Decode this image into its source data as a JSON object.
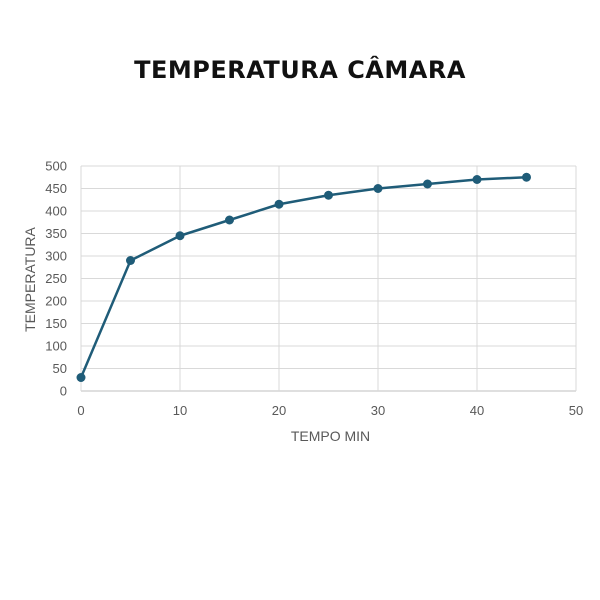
{
  "chart_data": {
    "type": "line",
    "title": "TEMPERATURA CÂMARA",
    "xlabel": "TEMPO MIN",
    "ylabel": "TEMPERATURA",
    "xlim": [
      0,
      50
    ],
    "ylim": [
      0,
      500
    ],
    "x_ticks": [
      0,
      10,
      20,
      30,
      40,
      50
    ],
    "y_ticks": [
      0,
      50,
      100,
      150,
      200,
      250,
      300,
      350,
      400,
      450,
      500
    ],
    "grid": true,
    "legend": "none",
    "series": [
      {
        "color": "#1f5c78",
        "x": [
          0,
          5,
          10,
          15,
          20,
          25,
          30,
          35,
          40,
          45
        ],
        "y": [
          30,
          290,
          345,
          380,
          415,
          435,
          450,
          460,
          470,
          475
        ]
      }
    ]
  }
}
